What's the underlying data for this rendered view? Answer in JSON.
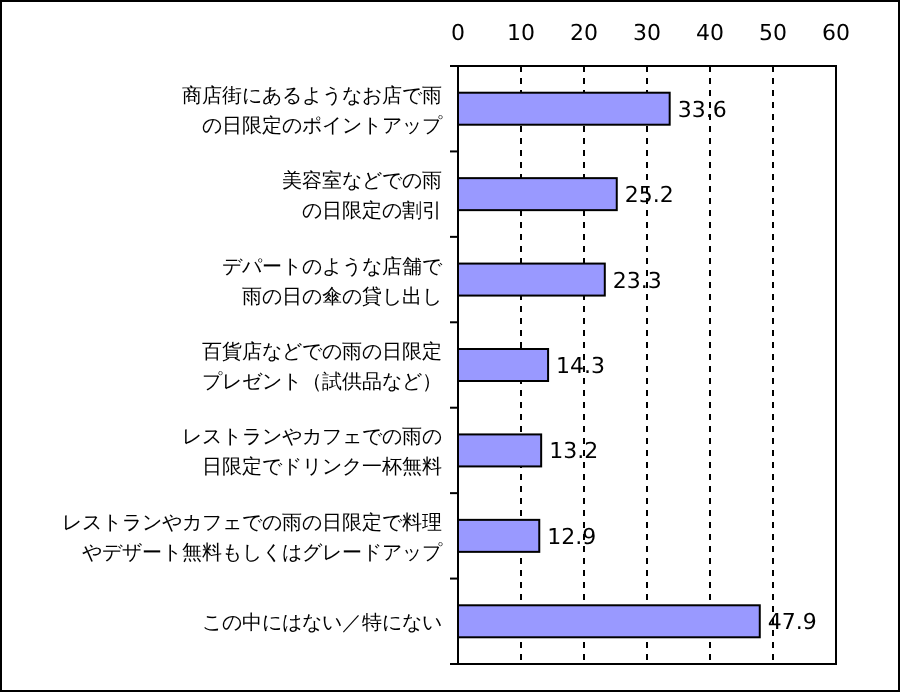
{
  "chart_data": {
    "type": "bar",
    "orientation": "horizontal",
    "categories": [
      "商店街にあるようなお店で雨の日限定のポイントアップ",
      "美容室などでの雨の日限定の割引",
      "デパートのような店舗で雨の日の傘の貸し出し",
      "百貨店などでの雨の日限定プレゼント（試供品など）",
      "レストランやカフェでの雨の日限定でドリンク一杯無料",
      "レストランやカフェでの雨の日限定で料理やデザート無料もしくはグレードアップ",
      "この中にはない／特にない"
    ],
    "values": [
      33.6,
      25.2,
      23.3,
      14.3,
      13.2,
      12.9,
      47.9
    ],
    "color": "#9999ff",
    "xlim": [
      0,
      60
    ],
    "xticks": [
      0,
      10,
      20,
      30,
      40,
      50,
      60
    ],
    "grid": "x",
    "data_labels": true
  }
}
